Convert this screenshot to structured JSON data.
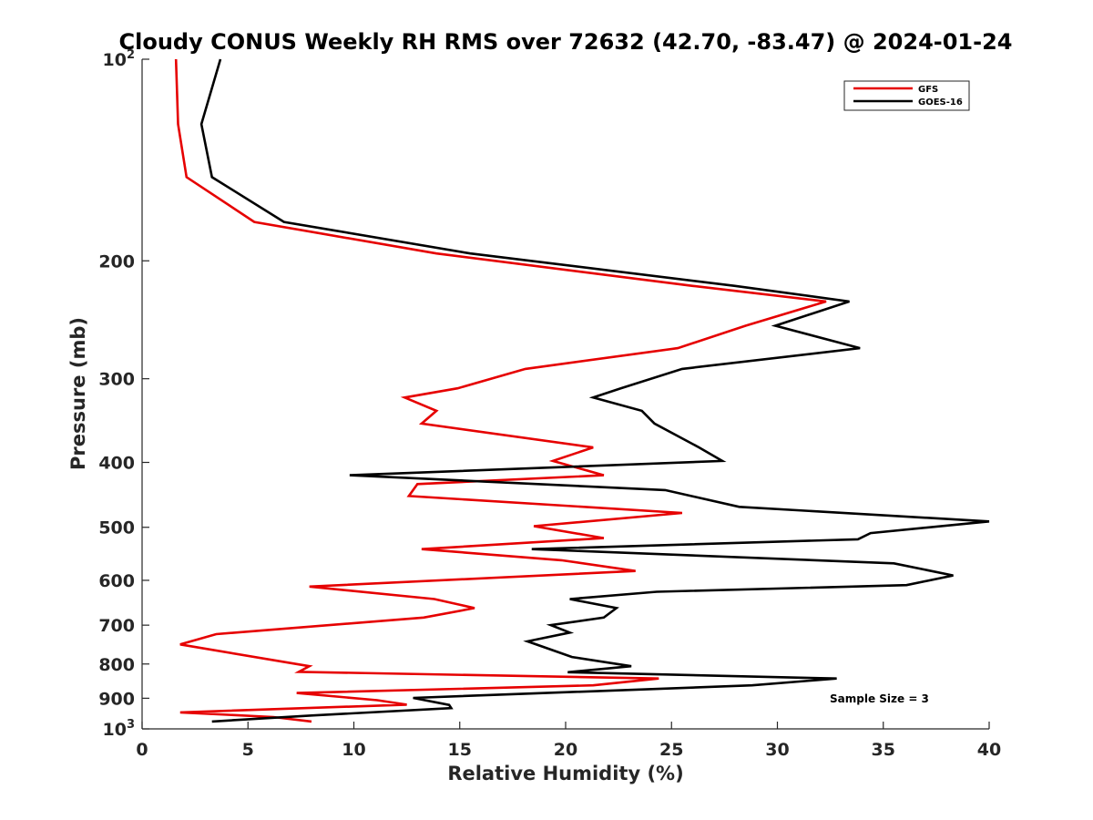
{
  "chart_data": {
    "type": "line",
    "title": "Cloudy CONUS Weekly RH RMS over 72632 (42.70, -83.47) @ 2024-01-24",
    "xlabel": "Relative Humidity (%)",
    "ylabel": "Pressure (mb)",
    "xlim": [
      0,
      40
    ],
    "ylim": [
      100,
      1000
    ],
    "y_scale": "log",
    "y_reversed": true,
    "grid": false,
    "legend_position": "top-right",
    "x_ticks": [
      0,
      5,
      10,
      15,
      20,
      25,
      30,
      35,
      40
    ],
    "y_ticks": [
      100,
      200,
      300,
      400,
      500,
      600,
      700,
      800,
      900,
      1000
    ],
    "y_tick_labels": [
      {
        "base": "10",
        "exp": "2"
      },
      {
        "base": "200",
        "exp": ""
      },
      {
        "base": "300",
        "exp": ""
      },
      {
        "base": "400",
        "exp": ""
      },
      {
        "base": "500",
        "exp": ""
      },
      {
        "base": "600",
        "exp": ""
      },
      {
        "base": "700",
        "exp": ""
      },
      {
        "base": "800",
        "exp": ""
      },
      {
        "base": "900",
        "exp": ""
      },
      {
        "base": "10",
        "exp": "3"
      }
    ],
    "series": [
      {
        "name": "GFS",
        "color": "#e60000",
        "points": [
          [
            1.6,
            100
          ],
          [
            1.7,
            125
          ],
          [
            2.1,
            150
          ],
          [
            5.3,
            175
          ],
          [
            13.9,
            195
          ],
          [
            26.0,
            218
          ],
          [
            32.3,
            230
          ],
          [
            28.5,
            250
          ],
          [
            25.3,
            270
          ],
          [
            18.1,
            290
          ],
          [
            14.9,
            310
          ],
          [
            12.4,
            320
          ],
          [
            13.9,
            335
          ],
          [
            13.2,
            350
          ],
          [
            21.3,
            380
          ],
          [
            19.4,
            398
          ],
          [
            21.8,
            418
          ],
          [
            13.0,
            431
          ],
          [
            12.6,
            449
          ],
          [
            25.5,
            476
          ],
          [
            18.5,
            498
          ],
          [
            21.8,
            519
          ],
          [
            13.2,
            539
          ],
          [
            19.8,
            560
          ],
          [
            23.3,
            581
          ],
          [
            7.9,
            613
          ],
          [
            13.8,
            640
          ],
          [
            15.7,
            660
          ],
          [
            13.3,
            682
          ],
          [
            3.5,
            722
          ],
          [
            1.8,
            748
          ],
          [
            7.9,
            806
          ],
          [
            7.4,
            822
          ],
          [
            24.4,
            841
          ],
          [
            21.3,
            861
          ],
          [
            7.3,
            884
          ],
          [
            11.1,
            906
          ],
          [
            12.5,
            920
          ],
          [
            1.8,
            945
          ],
          [
            6.2,
            960
          ],
          [
            8.0,
            975
          ]
        ]
      },
      {
        "name": "GOES-16",
        "color": "#000000",
        "points": [
          [
            3.7,
            100
          ],
          [
            2.8,
            125
          ],
          [
            3.3,
            150
          ],
          [
            6.7,
            175
          ],
          [
            15.5,
            195
          ],
          [
            28.0,
            218
          ],
          [
            33.4,
            230
          ],
          [
            29.9,
            250
          ],
          [
            33.9,
            270
          ],
          [
            25.5,
            290
          ],
          [
            22.6,
            310
          ],
          [
            21.3,
            320
          ],
          [
            23.6,
            335
          ],
          [
            24.2,
            350
          ],
          [
            26.3,
            380
          ],
          [
            27.4,
            398
          ],
          [
            9.8,
            418
          ],
          [
            24.7,
            440
          ],
          [
            28.2,
            466
          ],
          [
            40.0,
            490
          ],
          [
            34.4,
            510
          ],
          [
            33.8,
            521
          ],
          [
            18.4,
            539
          ],
          [
            35.5,
            566
          ],
          [
            38.3,
            590
          ],
          [
            36.1,
            610
          ],
          [
            24.3,
            624
          ],
          [
            20.2,
            640
          ],
          [
            22.4,
            660
          ],
          [
            21.8,
            682
          ],
          [
            19.3,
            700
          ],
          [
            20.2,
            718
          ],
          [
            18.2,
            740
          ],
          [
            20.3,
            781
          ],
          [
            23.1,
            806
          ],
          [
            20.1,
            823
          ],
          [
            32.8,
            841
          ],
          [
            28.8,
            861
          ],
          [
            12.8,
            899
          ],
          [
            14.5,
            921
          ],
          [
            14.6,
            931
          ],
          [
            8.0,
            955
          ],
          [
            3.3,
            975
          ]
        ]
      }
    ],
    "annotations": [
      "Sample Size = 3"
    ]
  }
}
